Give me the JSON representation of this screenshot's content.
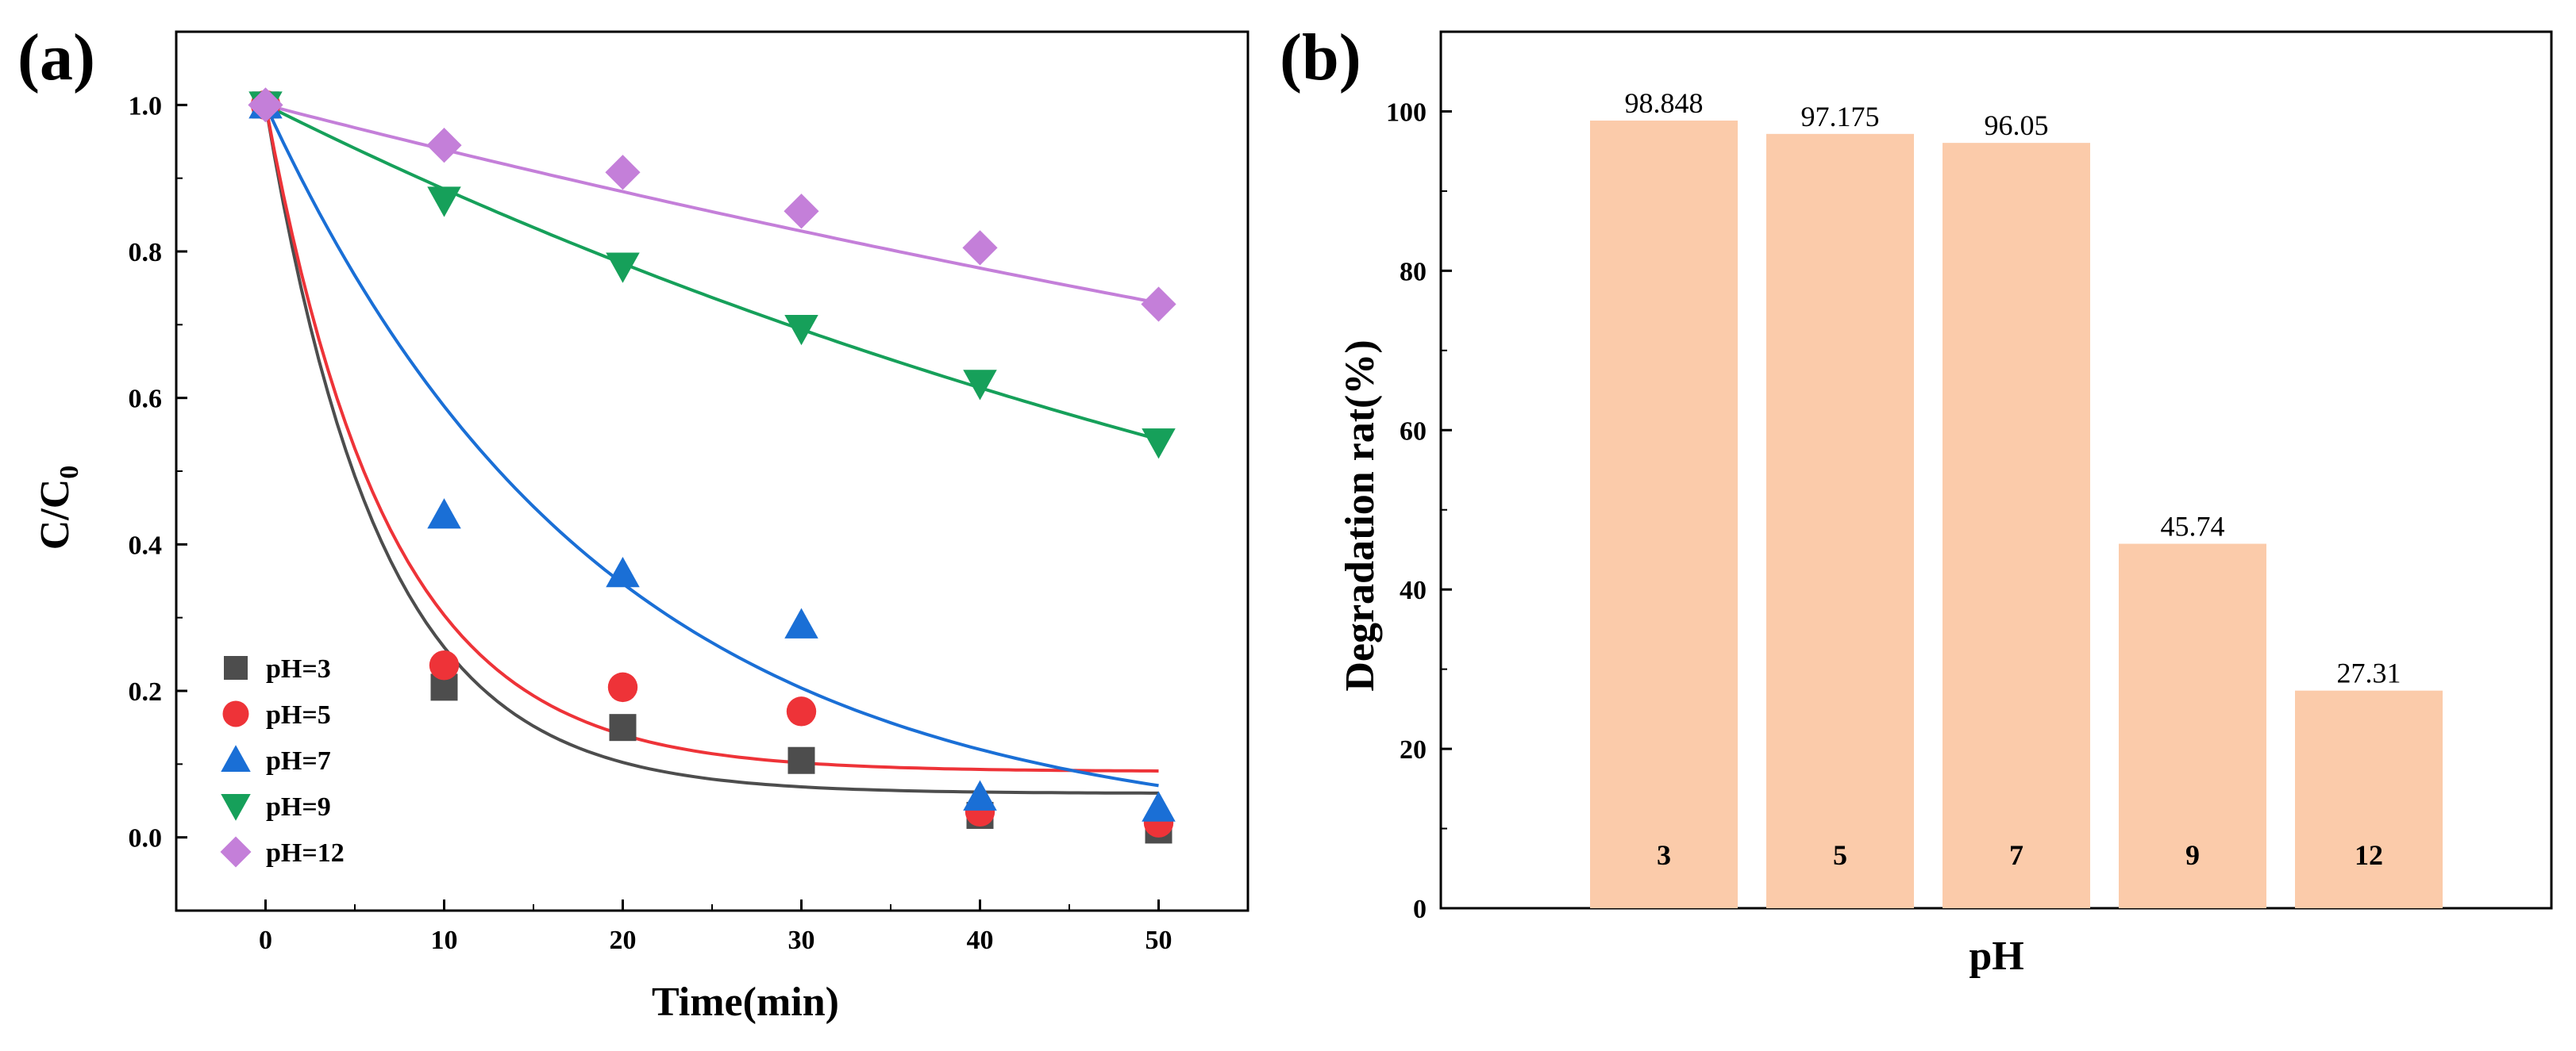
{
  "chart_data": [
    {
      "panel_label": "(a)",
      "type": "scatter",
      "xlabel": "Time(min)",
      "ylabel_main": "C/C",
      "ylabel_sub": "0",
      "xlim": [
        -5,
        55
      ],
      "ylim": [
        -0.1,
        1.1
      ],
      "xticks": [
        0,
        10,
        20,
        30,
        40,
        50
      ],
      "yticks": [
        "0.0",
        "0.2",
        "0.4",
        "0.6",
        "0.8",
        "1.0"
      ],
      "legend_position": "bottom-left",
      "x": [
        0,
        10,
        20,
        30,
        40,
        50
      ],
      "series": [
        {
          "name": "pH=3",
          "color": "#4d4d4d",
          "marker": "square",
          "values": [
            1.0,
            0.205,
            0.15,
            0.105,
            0.03,
            0.01
          ],
          "fit": {
            "plateau": 0.06,
            "k": 0.155
          }
        },
        {
          "name": "pH=5",
          "color": "#ee3338",
          "marker": "circle",
          "values": [
            1.0,
            0.235,
            0.205,
            0.172,
            0.035,
            0.02
          ],
          "fit": {
            "plateau": 0.09,
            "k": 0.145
          }
        },
        {
          "name": "pH=7",
          "color": "#1a6fd6",
          "marker": "triangle-up",
          "values": [
            1.0,
            0.44,
            0.36,
            0.29,
            0.055,
            0.04
          ],
          "fit": {
            "plateau": 0.0,
            "k": 0.053
          }
        },
        {
          "name": "pH=9",
          "color": "#16a05a",
          "marker": "triangle-down",
          "values": [
            1.0,
            0.87,
            0.78,
            0.695,
            0.62,
            0.54
          ],
          "fit": {
            "plateau": 0.0,
            "k": 0.0122
          }
        },
        {
          "name": "pH=12",
          "color": "#c47fd9",
          "marker": "diamond",
          "values": [
            1.0,
            0.945,
            0.908,
            0.855,
            0.805,
            0.728
          ],
          "fit": {
            "plateau": 0.0,
            "k": 0.0063
          }
        }
      ]
    },
    {
      "panel_label": "(b)",
      "type": "bar",
      "xlabel": "pH",
      "ylabel": "Degradation rat(%)",
      "ylim": [
        0,
        110
      ],
      "yticks": [
        "0",
        "20",
        "40",
        "60",
        "80",
        "100"
      ],
      "bar_color": "#fbcbaa",
      "categories": [
        "3",
        "5",
        "7",
        "9",
        "12"
      ],
      "values": [
        98.848,
        97.175,
        96.05,
        45.74,
        27.31
      ],
      "value_labels": [
        "98.848",
        "97.175",
        "96.05",
        "45.74",
        "27.31"
      ]
    }
  ]
}
